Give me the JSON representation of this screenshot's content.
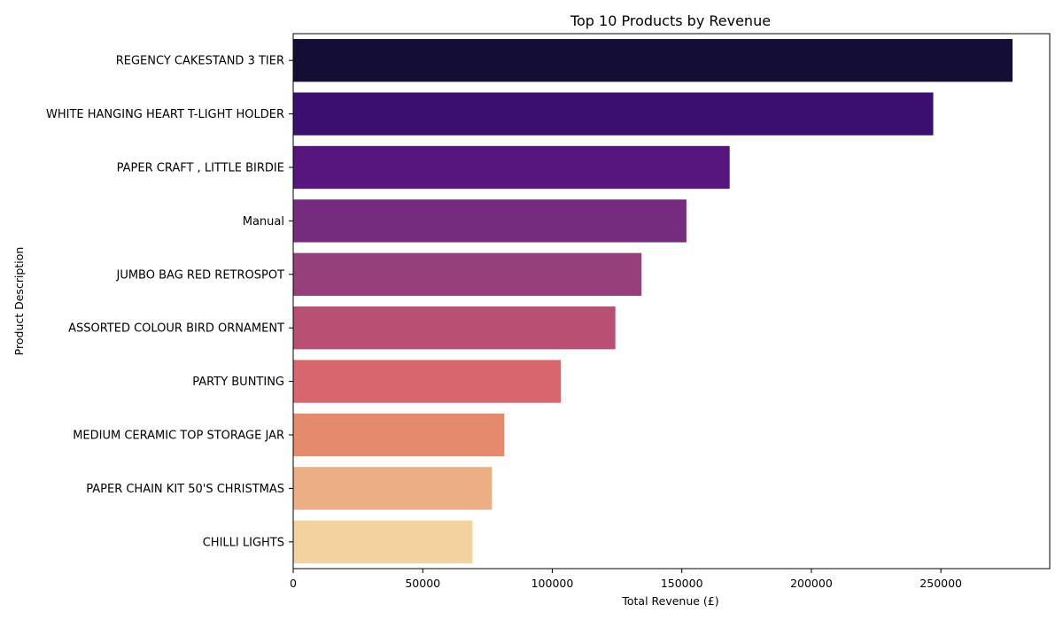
{
  "chart_data": {
    "type": "bar",
    "orientation": "horizontal",
    "title": "Top 10 Products by Revenue",
    "xlabel": "Total Revenue (£)",
    "ylabel": "Product Description",
    "categories": [
      "REGENCY CAKESTAND 3 TIER",
      "WHITE HANGING HEART T-LIGHT HOLDER",
      "PAPER CRAFT , LITTLE BIRDIE",
      "Manual",
      "JUMBO BAG RED RETROSPOT",
      "ASSORTED COLOUR BIRD ORNAMENT",
      "PARTY BUNTING",
      "MEDIUM CERAMIC TOP STORAGE JAR",
      "PAPER CHAIN KIT 50'S CHRISTMAS ",
      "CHILLI LIGHTS"
    ],
    "values": [
      277656,
      247048,
      168470,
      151778,
      134456,
      124347,
      103253,
      81469,
      76679,
      69199
    ],
    "colors": [
      "#140e36",
      "#3b0f70",
      "#57157e",
      "#752c7f",
      "#95407a",
      "#b94f72",
      "#d8666f",
      "#e68a6e",
      "#ecae84",
      "#f3d2a0"
    ],
    "xlim": [
      0,
      292000
    ],
    "xticks": [
      0,
      50000,
      100000,
      150000,
      200000,
      250000
    ],
    "grid": false,
    "legend": "none"
  }
}
